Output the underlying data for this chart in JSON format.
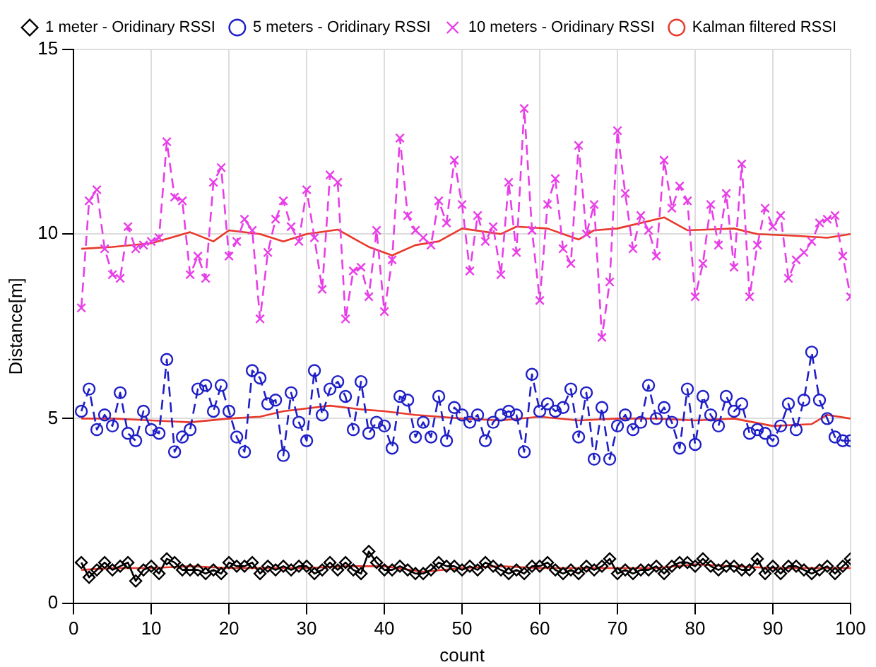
{
  "chart_data": {
    "type": "line",
    "xlabel": "count",
    "ylabel": "Distance[m]",
    "xlim": [
      0,
      100
    ],
    "ylim": [
      0,
      15
    ],
    "xticks": [
      0,
      10,
      20,
      30,
      40,
      50,
      60,
      70,
      80,
      90,
      100
    ],
    "yticks": [
      0,
      5,
      10,
      15
    ],
    "grid": true,
    "legend": "top right",
    "x": [
      1,
      2,
      3,
      4,
      5,
      6,
      7,
      8,
      9,
      10,
      11,
      12,
      13,
      14,
      15,
      16,
      17,
      18,
      19,
      20,
      21,
      22,
      23,
      24,
      25,
      26,
      27,
      28,
      29,
      30,
      31,
      32,
      33,
      34,
      35,
      36,
      37,
      38,
      39,
      40,
      41,
      42,
      43,
      44,
      45,
      46,
      47,
      48,
      49,
      50,
      51,
      52,
      53,
      54,
      55,
      56,
      57,
      58,
      59,
      60,
      61,
      62,
      63,
      64,
      65,
      66,
      67,
      68,
      69,
      70,
      71,
      72,
      73,
      74,
      75,
      76,
      77,
      78,
      79,
      80,
      81,
      82,
      83,
      84,
      85,
      86,
      87,
      88,
      89,
      90,
      91,
      92,
      93,
      94,
      95,
      96,
      97,
      98,
      99,
      100
    ],
    "series": [
      {
        "name": "1 meter - Oridinary RSSI",
        "color": "#000000",
        "marker": "diamond",
        "line_style": "solid",
        "values": [
          1.1,
          0.7,
          0.9,
          1.1,
          0.9,
          1.0,
          1.1,
          0.6,
          0.9,
          1.0,
          0.8,
          1.2,
          1.1,
          0.9,
          0.9,
          0.9,
          0.8,
          0.9,
          0.8,
          1.1,
          1.0,
          1.0,
          1.1,
          0.8,
          1.0,
          0.9,
          1.0,
          0.9,
          1.0,
          1.0,
          0.8,
          0.9,
          1.1,
          0.9,
          1.1,
          0.9,
          0.8,
          1.4,
          1.1,
          0.9,
          0.9,
          1.0,
          0.9,
          0.8,
          0.8,
          0.9,
          1.1,
          1.0,
          1.0,
          0.9,
          1.0,
          0.9,
          1.1,
          1.0,
          0.9,
          0.8,
          0.9,
          0.8,
          1.0,
          1.0,
          1.1,
          0.9,
          0.8,
          0.9,
          0.8,
          1.0,
          0.9,
          1.0,
          1.2,
          0.8,
          0.9,
          0.8,
          0.9,
          0.9,
          1.0,
          0.8,
          1.0,
          1.1,
          1.1,
          1.0,
          1.2,
          1.0,
          0.9,
          1.0,
          1.0,
          0.9,
          0.9,
          1.2,
          0.8,
          1.0,
          0.8,
          1.0,
          1.0,
          0.9,
          0.8,
          0.9,
          1.0,
          0.8,
          1.0,
          1.2
        ]
      },
      {
        "name": "5 meters - Oridinary RSSI",
        "color": "#1f1fc8",
        "marker": "circle",
        "line_style": "dashed",
        "values": [
          5.2,
          5.8,
          4.7,
          5.1,
          4.8,
          5.7,
          4.6,
          4.4,
          5.2,
          4.7,
          4.6,
          6.6,
          4.1,
          4.5,
          4.7,
          5.8,
          5.9,
          5.2,
          5.9,
          5.2,
          4.5,
          4.1,
          6.3,
          6.1,
          5.4,
          5.5,
          4.0,
          5.7,
          4.9,
          4.4,
          6.3,
          5.1,
          5.8,
          6.0,
          5.6,
          4.7,
          6.0,
          4.6,
          4.9,
          4.8,
          4.2,
          5.6,
          5.5,
          4.5,
          4.9,
          4.5,
          5.6,
          4.4,
          5.3,
          5.1,
          4.9,
          5.1,
          4.4,
          4.9,
          5.1,
          5.2,
          5.1,
          4.1,
          6.2,
          5.2,
          5.4,
          5.2,
          5.3,
          5.8,
          4.5,
          5.7,
          3.9,
          5.3,
          3.9,
          4.8,
          5.1,
          4.7,
          4.9,
          5.9,
          5.0,
          5.3,
          4.9,
          4.2,
          5.8,
          4.3,
          5.6,
          5.1,
          4.8,
          5.6,
          5.2,
          5.4,
          4.6,
          4.7,
          4.6,
          4.4,
          4.8,
          5.4,
          4.7,
          5.5,
          6.8,
          5.5,
          5.0,
          4.5,
          4.4,
          4.4
        ]
      },
      {
        "name": "10 meters - Oridinary RSSI",
        "color": "#e83ee8",
        "marker": "cross",
        "line_style": "dashed",
        "values": [
          8.0,
          10.9,
          11.2,
          9.6,
          8.9,
          8.8,
          10.2,
          9.6,
          9.7,
          9.8,
          9.9,
          12.5,
          11.0,
          10.9,
          8.9,
          9.4,
          8.8,
          11.4,
          11.8,
          9.4,
          9.8,
          10.4,
          10.1,
          7.7,
          9.5,
          10.4,
          10.9,
          10.2,
          9.8,
          11.2,
          9.9,
          8.5,
          11.6,
          11.4,
          7.7,
          9.0,
          9.1,
          8.3,
          10.1,
          7.9,
          9.3,
          12.6,
          10.5,
          10.1,
          9.9,
          9.7,
          10.9,
          10.3,
          12.0,
          10.8,
          9.0,
          10.5,
          9.8,
          10.2,
          8.9,
          11.4,
          9.5,
          13.4,
          10.1,
          8.2,
          10.8,
          11.5,
          9.6,
          9.2,
          12.4,
          10.0,
          10.8,
          7.2,
          8.7,
          12.8,
          11.1,
          9.6,
          10.5,
          10.1,
          9.4,
          12.0,
          10.7,
          11.3,
          10.9,
          8.3,
          9.2,
          10.8,
          9.7,
          11.1,
          9.1,
          11.9,
          8.3,
          9.7,
          10.7,
          10.2,
          10.5,
          8.8,
          9.3,
          9.5,
          9.8,
          10.3,
          10.4,
          10.5,
          9.4,
          8.3
        ]
      },
      {
        "name": "Kalman filtered RSSI",
        "color": "#e8392b",
        "marker": "none",
        "line_style": "solid",
        "x": [
          1,
          5,
          10,
          15,
          18,
          20,
          24,
          27,
          30,
          34,
          38,
          41,
          44,
          47,
          50,
          55,
          57,
          61,
          65,
          67,
          70,
          76,
          79,
          85,
          88,
          93,
          97,
          100
        ],
        "values": [
          9.6,
          9.65,
          9.75,
          10.05,
          9.8,
          10.1,
          10.0,
          9.8,
          10.0,
          10.12,
          9.65,
          9.42,
          9.7,
          9.8,
          10.15,
          10.0,
          10.2,
          10.15,
          9.85,
          10.1,
          10.15,
          10.45,
          10.1,
          10.15,
          10.0,
          9.95,
          9.9,
          10.0
        ]
      },
      {
        "color": "#e8392b",
        "marker": "none",
        "line_style": "solid",
        "x": [
          1,
          5,
          10,
          15,
          20,
          24,
          27,
          33,
          37,
          40,
          44,
          47,
          50,
          55,
          60,
          65,
          70,
          75,
          80,
          85,
          90,
          95,
          97,
          100
        ],
        "values": [
          5.0,
          5.0,
          4.95,
          4.9,
          5.0,
          5.05,
          5.2,
          5.35,
          5.25,
          5.2,
          5.1,
          5.05,
          5.0,
          4.95,
          5.05,
          4.95,
          5.0,
          5.0,
          4.95,
          5.0,
          4.8,
          4.85,
          5.1,
          5.0
        ]
      },
      {
        "color": "#e8392b",
        "marker": "none",
        "line_style": "solid",
        "x": [
          1,
          5,
          10,
          15,
          20,
          25,
          30,
          35,
          40,
          45,
          50,
          55,
          60,
          65,
          70,
          75,
          80,
          85,
          90,
          95,
          100
        ],
        "values": [
          0.9,
          0.95,
          0.95,
          1.0,
          0.95,
          0.95,
          0.95,
          1.0,
          1.0,
          0.85,
          0.95,
          1.0,
          0.95,
          0.95,
          0.95,
          0.95,
          1.05,
          1.0,
          0.95,
          0.95,
          0.95
        ]
      }
    ]
  }
}
